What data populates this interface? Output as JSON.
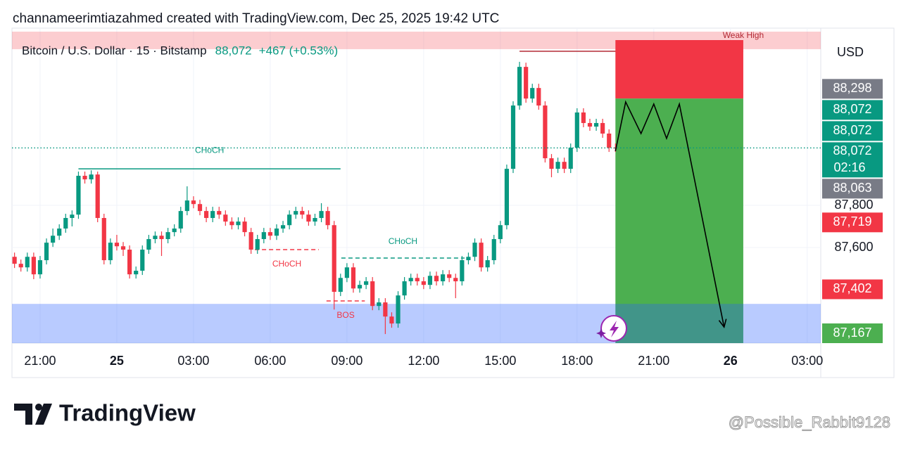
{
  "header": "channameerimtiazahmed created with TradingView.com, Dec 25, 2025 19:42 UTC",
  "chart_data": {
    "type": "candlestick",
    "legend": {
      "symbol": "Bitcoin / U.S. Dollar · 15 · Bitstamp",
      "price": "88,072",
      "change": "+467 (+0.53%)"
    },
    "currency": "USD",
    "up_color": "#089981",
    "down_color": "#f23645",
    "x": [
      20,
      20.25,
      20.5,
      20.75,
      21,
      21.25,
      21.5,
      21.75,
      22,
      22.25,
      22.5,
      22.75,
      23,
      23.25,
      23.5,
      23.75,
      24,
      24.25,
      24.5,
      24.75,
      25,
      25.25,
      25.5,
      25.75,
      26,
      26.25,
      26.5,
      26.75,
      27,
      27.25,
      27.5,
      27.75,
      28,
      28.25,
      28.5,
      28.75,
      29,
      29.25,
      29.5,
      29.75,
      30,
      30.25,
      30.5,
      30.75,
      31,
      31.25,
      31.5,
      31.75,
      32,
      32.25,
      32.5,
      32.75,
      33,
      33.25,
      33.5,
      33.75,
      34,
      34.25,
      34.5,
      34.75,
      35,
      35.25,
      35.5,
      35.75,
      36,
      36.25,
      36.5,
      36.75,
      37,
      37.25,
      37.5,
      37.75,
      38,
      38.25,
      38.5,
      38.75,
      39,
      39.25,
      39.5,
      39.75,
      40,
      40.25,
      40.5,
      40.75,
      41,
      41.25,
      41.5,
      41.75,
      42,
      42.25,
      42.5,
      42.75,
      43,
      43.25,
      43.5
    ],
    "open": [
      87556,
      87523,
      87506,
      87556,
      87473,
      87540,
      87623,
      87656,
      87690,
      87740,
      87756,
      87940,
      87923,
      87946,
      87740,
      87540,
      87623,
      87606,
      87590,
      87473,
      87490,
      87590,
      87640,
      87656,
      87640,
      87673,
      87690,
      87773,
      87823,
      87806,
      87773,
      87740,
      87773,
      87756,
      87723,
      87706,
      87723,
      87673,
      87590,
      87640,
      87673,
      87656,
      87690,
      87706,
      87756,
      87773,
      87756,
      87723,
      87740,
      87773,
      87706,
      87390,
      87456,
      87506,
      87406,
      87423,
      87440,
      87323,
      87340,
      87273,
      87240,
      87373,
      87440,
      87456,
      87440,
      87423,
      87466,
      87440,
      87473,
      87456,
      87440,
      87540,
      87556,
      87623,
      87506,
      87540,
      87640,
      87706,
      87973,
      88273,
      88456,
      88306,
      88356,
      88273,
      88023,
      87973,
      88006,
      87973,
      88073,
      88240,
      88190,
      88173,
      88190,
      88140,
      88073
    ],
    "high": [
      87576,
      87543,
      87576,
      87576,
      87560,
      87643,
      87690,
      87710,
      87760,
      87776,
      87960,
      87960,
      87966,
      87960,
      87760,
      87643,
      87660,
      87626,
      87610,
      87510,
      87610,
      87660,
      87676,
      87676,
      87693,
      87710,
      87793,
      87890,
      87843,
      87826,
      87793,
      87793,
      87793,
      87776,
      87743,
      87743,
      87743,
      87693,
      87660,
      87693,
      87693,
      87710,
      87726,
      87776,
      87793,
      87793,
      87776,
      87760,
      87810,
      87793,
      87726,
      87476,
      87526,
      87526,
      87443,
      87460,
      87460,
      87360,
      87360,
      87293,
      87393,
      87460,
      87476,
      87476,
      87460,
      87486,
      87486,
      87493,
      87493,
      87476,
      87560,
      87576,
      87643,
      87643,
      87560,
      87660,
      87726,
      87993,
      88293,
      88480,
      88476,
      88376,
      88376,
      88293,
      88043,
      88026,
      88026,
      88093,
      88260,
      88260,
      88210,
      88210,
      88210,
      88160,
      88093
    ],
    "low": [
      87503,
      87486,
      87486,
      87450,
      87453,
      87520,
      87603,
      87636,
      87670,
      87700,
      87736,
      87903,
      87903,
      87720,
      87520,
      87520,
      87586,
      87560,
      87453,
      87453,
      87470,
      87570,
      87620,
      87560,
      87620,
      87653,
      87670,
      87753,
      87786,
      87753,
      87720,
      87720,
      87736,
      87703,
      87686,
      87686,
      87653,
      87570,
      87570,
      87620,
      87636,
      87636,
      87670,
      87686,
      87736,
      87736,
      87703,
      87703,
      87720,
      87686,
      87306,
      87370,
      87436,
      87386,
      87386,
      87403,
      87303,
      87303,
      87190,
      87220,
      87220,
      87353,
      87420,
      87420,
      87403,
      87403,
      87420,
      87420,
      87436,
      87360,
      87420,
      87520,
      87536,
      87486,
      87486,
      87520,
      87620,
      87686,
      87953,
      88253,
      88286,
      88286,
      88253,
      88003,
      87933,
      87953,
      87953,
      87953,
      88053,
      88170,
      88153,
      88153,
      88120,
      88053,
      88053
    ],
    "close": [
      87523,
      87506,
      87556,
      87473,
      87540,
      87623,
      87656,
      87690,
      87740,
      87756,
      87940,
      87923,
      87946,
      87740,
      87540,
      87623,
      87606,
      87590,
      87473,
      87490,
      87590,
      87640,
      87656,
      87640,
      87673,
      87690,
      87773,
      87823,
      87806,
      87773,
      87740,
      87773,
      87756,
      87723,
      87706,
      87723,
      87673,
      87590,
      87640,
      87673,
      87656,
      87690,
      87706,
      87756,
      87773,
      87756,
      87723,
      87740,
      87773,
      87706,
      87390,
      87456,
      87506,
      87406,
      87423,
      87440,
      87323,
      87340,
      87273,
      87240,
      87373,
      87440,
      87456,
      87440,
      87423,
      87466,
      87440,
      87473,
      87456,
      87440,
      87540,
      87556,
      87623,
      87506,
      87540,
      87640,
      87706,
      87973,
      88273,
      88456,
      88306,
      88356,
      88273,
      88023,
      87973,
      88006,
      87973,
      88073,
      88240,
      88190,
      88173,
      88190,
      88140,
      88073,
      88072
    ],
    "xlim": [
      19.9,
      51.53
    ],
    "xticks": [
      {
        "value": 21,
        "label": "21:00"
      },
      {
        "value": 24,
        "label": "25"
      },
      {
        "value": 27,
        "label": "03:00"
      },
      {
        "value": 30,
        "label": "06:00"
      },
      {
        "value": 33,
        "label": "09:00"
      },
      {
        "value": 36,
        "label": "12:00"
      },
      {
        "value": 39,
        "label": "15:00"
      },
      {
        "value": 42,
        "label": "18:00"
      },
      {
        "value": 45,
        "label": "21:00"
      },
      {
        "value": 48,
        "label": "26"
      },
      {
        "value": 51,
        "label": "03:00"
      }
    ],
    "ylim": [
      87147,
      88623
    ],
    "yticks": [
      {
        "value": 87600,
        "label": "87,600"
      },
      {
        "value": 87800,
        "label": "87,800"
      }
    ],
    "last_price_line": 88072,
    "price_labels": [
      {
        "value": 88298,
        "label": "88,298",
        "color": "#787b86"
      },
      {
        "value": 88072,
        "label": "88,072",
        "color": "#089981"
      },
      {
        "value": 88072,
        "label": "88,072",
        "color": "#089981"
      },
      {
        "value": 88072,
        "label": "88,072",
        "sublabel": "02:16",
        "color": "#089981"
      },
      {
        "value": 88063,
        "label": "88,063",
        "color": "#787b86"
      },
      {
        "value": 87719,
        "label": "87,719",
        "color": "#f23645"
      },
      {
        "value": 87402,
        "label": "87,402",
        "color": "#f23645"
      },
      {
        "value": 87167,
        "label": "87,167",
        "color": "#4caf50"
      }
    ],
    "zones": [
      {
        "x": [
          19.9,
          51.53
        ],
        "y": [
          88540,
          88623
        ],
        "color": "rgba(242,54,69,0.25)"
      },
      {
        "x": [
          43.5,
          48.5
        ],
        "y": [
          88306,
          88583
        ],
        "color": "#f23645"
      },
      {
        "x": [
          43.5,
          48.5
        ],
        "y": [
          87147,
          88306
        ],
        "color": "#4caf50"
      },
      {
        "x": [
          19.9,
          51.53
        ],
        "y": [
          87147,
          87333
        ],
        "color": "rgba(41,98,255,0.33)"
      }
    ],
    "lines": [
      {
        "x": [
          39.75,
          48.5
        ],
        "y": 88530,
        "color": "#b22833",
        "label": "Weak High"
      },
      {
        "x": [
          22.5,
          32.75
        ],
        "y": 87973,
        "color": "#089981",
        "label": "CHoCH"
      },
      {
        "x": [
          29.4,
          31.9
        ],
        "y": 87590,
        "color": "#f23645",
        "dashed": true,
        "label": "CHoCH"
      },
      {
        "x": [
          32.78,
          37.6
        ],
        "y": 87550,
        "color": "#089981",
        "dashed": true,
        "label": "CHoCH"
      },
      {
        "x": [
          32.2,
          33.7
        ],
        "y": 87347,
        "color": "#f23645",
        "dashed": true,
        "label": "BOS"
      }
    ],
    "projection": {
      "x": [
        43.5,
        43.9,
        44.5,
        45.0,
        45.5,
        46.0,
        47.75
      ],
      "y": [
        88057,
        88290,
        88140,
        88280,
        88117,
        88280,
        87223
      ],
      "color": "#000000"
    }
  },
  "footer": {
    "brand": "TradingView",
    "watermark": "@Possible_Rabbit9128"
  }
}
